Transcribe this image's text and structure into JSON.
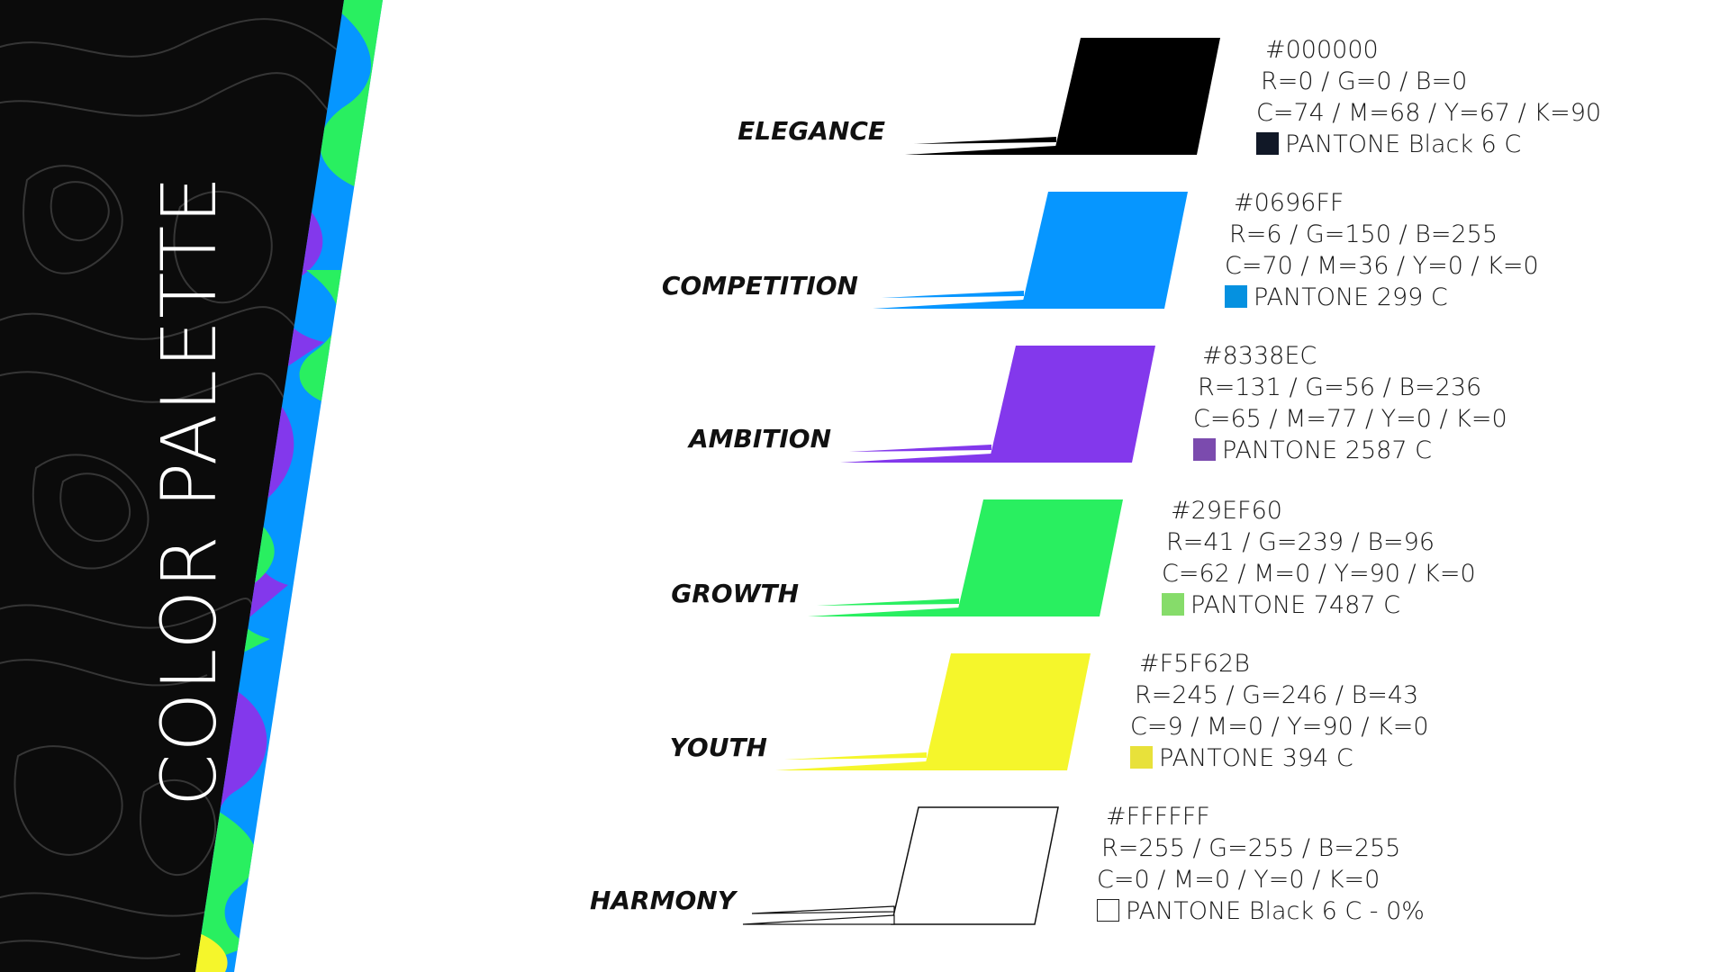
{
  "page": {
    "title": "COLOR PALETTE",
    "background": "#ffffff",
    "side_panel_background": "#0b0b0b",
    "band_colors": [
      "#0696FF",
      "#29EF60",
      "#8338EC",
      "#F5F62B"
    ]
  },
  "colors": [
    {
      "label": "ELEGANCE",
      "hex": "#000000",
      "rgb": "R=0 / G=0 / B=0",
      "cmyk": "C=74 / M=68 / Y=67 / K=90",
      "pantone": "PANTONE Black 6 C",
      "swatch_color": "#000000",
      "chip_color": "#111827"
    },
    {
      "label": "COMPETITION",
      "hex": "#0696FF",
      "rgb": "R=6 / G=150 / B=255",
      "cmyk": "C=70 / M=36 / Y=0 / K=0",
      "pantone": "PANTONE 299 C",
      "swatch_color": "#0696FF",
      "chip_color": "#0591E0"
    },
    {
      "label": "AMBITION",
      "hex": "#8338EC",
      "rgb": "R=131 / G=56 / B=236",
      "cmyk": "C=65 / M=77 / Y=0 / K=0",
      "pantone": "PANTONE 2587 C",
      "swatch_color": "#8338EC",
      "chip_color": "#7B4BAE"
    },
    {
      "label": "GROWTH",
      "hex": "#29EF60",
      "rgb": "R=41 / G=239 / B=96",
      "cmyk": "C=62 / M=0 / Y=90 / K=0",
      "pantone": "PANTONE 7487 C",
      "swatch_color": "#29EF60",
      "chip_color": "#86DC6A"
    },
    {
      "label": "YOUTH",
      "hex": "#F5F62B",
      "rgb": "R=245 / G=246 / B=43",
      "cmyk": "C=9 / M=0 / Y=90 / K=0",
      "pantone": "PANTONE 394 C",
      "swatch_color": "#F5F62B",
      "chip_color": "#E8E13A"
    },
    {
      "label": "HARMONY",
      "hex": "#FFFFFF",
      "rgb": "R=255 / G=255 / B=255",
      "cmyk": "C=0 / M=0 / Y=0 / K=0",
      "pantone": "PANTONE Black 6 C - 0%",
      "swatch_color": "#FFFFFF",
      "chip_color": "#FFFFFF"
    }
  ]
}
